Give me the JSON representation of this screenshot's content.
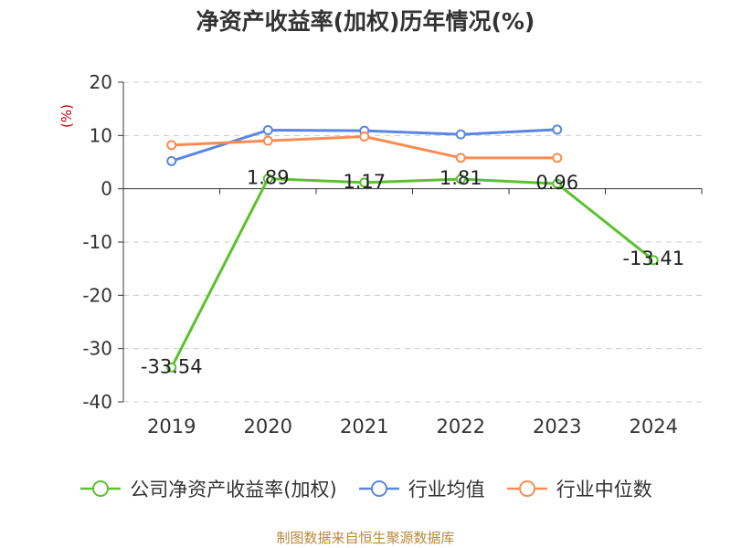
{
  "chart_data": {
    "type": "line",
    "title": "净资产收益率(加权)历年情况(%)",
    "ylabel": "(%)",
    "xlabel": "",
    "categories": [
      "2019",
      "2020",
      "2021",
      "2022",
      "2023",
      "2024"
    ],
    "ylim": [
      -40,
      20
    ],
    "yticks": [
      20,
      10,
      0,
      -10,
      -20,
      -30,
      -40
    ],
    "grid": true,
    "legend_position": "bottom",
    "series": [
      {
        "name": "公司净资产收益率(加权)",
        "color": "#5bc12e",
        "values": [
          -33.54,
          1.89,
          1.17,
          1.81,
          0.96,
          -13.41
        ],
        "labels": [
          "-33.54",
          "1.89",
          "1.17",
          "1.81",
          "0.96",
          "-13.41"
        ]
      },
      {
        "name": "行业均值",
        "color": "#5b86e0",
        "values": [
          5.2,
          11.0,
          10.9,
          10.2,
          11.1,
          null
        ]
      },
      {
        "name": "行业中位数",
        "color": "#f98c53",
        "values": [
          8.2,
          9.0,
          9.8,
          5.8,
          5.8,
          null
        ]
      }
    ],
    "source": "制图数据来自恒生聚源数据库"
  }
}
